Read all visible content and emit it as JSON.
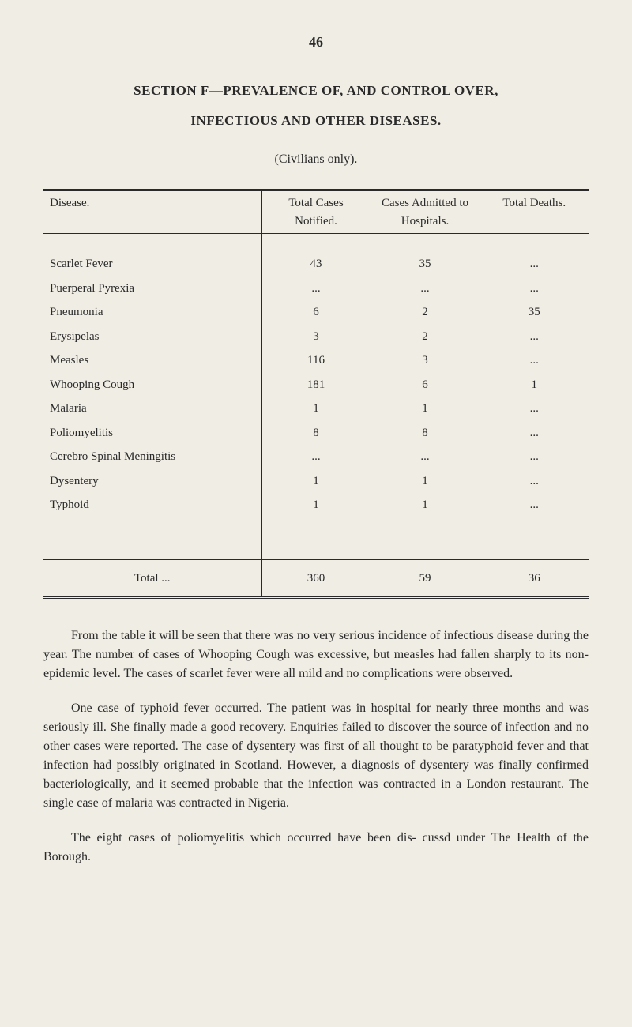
{
  "page_number": "46",
  "section_title": "SECTION F—PREVALENCE OF, AND CONTROL OVER,",
  "subtitle": "INFECTIOUS AND OTHER DISEASES.",
  "note": "(Civilians only).",
  "table": {
    "headers": {
      "disease": "Disease.",
      "notified": "Total Cases Notified.",
      "admitted": "Cases Admitted to Hospitals.",
      "deaths": "Total Deaths."
    },
    "rows": [
      {
        "disease": "Scarlet Fever",
        "notified": "43",
        "admitted": "35",
        "deaths": "..."
      },
      {
        "disease": "Puerperal Pyrexia",
        "notified": "...",
        "admitted": "...",
        "deaths": "..."
      },
      {
        "disease": "Pneumonia",
        "notified": "6",
        "admitted": "2",
        "deaths": "35"
      },
      {
        "disease": "Erysipelas",
        "notified": "3",
        "admitted": "2",
        "deaths": "..."
      },
      {
        "disease": "Measles",
        "notified": "116",
        "admitted": "3",
        "deaths": "..."
      },
      {
        "disease": "Whooping Cough",
        "notified": "181",
        "admitted": "6",
        "deaths": "1"
      },
      {
        "disease": "Malaria",
        "notified": "1",
        "admitted": "1",
        "deaths": "..."
      },
      {
        "disease": "Poliomyelitis",
        "notified": "8",
        "admitted": "8",
        "deaths": "..."
      },
      {
        "disease": "Cerebro Spinal Meningitis",
        "notified": "...",
        "admitted": "...",
        "deaths": "..."
      },
      {
        "disease": "Dysentery",
        "notified": "1",
        "admitted": "1",
        "deaths": "..."
      },
      {
        "disease": "Typhoid",
        "notified": "1",
        "admitted": "1",
        "deaths": "..."
      }
    ],
    "total": {
      "label": "Total   ...",
      "notified": "360",
      "admitted": "59",
      "deaths": "36"
    }
  },
  "paragraphs": {
    "p1": "From the table it will be seen that there was no very serious incidence of infectious disease during the year. The number of cases of Whooping Cough was excessive, but measles had fallen sharply to its non-epidemic level. The cases of scarlet fever were all mild and no complications were observed.",
    "p2": "One case of typhoid fever occurred. The patient was in hospital for nearly three months and was seriously ill. She finally made a good recovery. Enquiries failed to discover the source of infection and no other cases were reported. The case of dysentery was first of all thought to be paratyphoid fever and that infection had possibly originated in Scotland. However, a diagnosis of dysentery was finally confirmed bacteriologically, and it seemed probable that the infection was contracted in a London restaurant. The single case of malaria was contracted in Nigeria.",
    "p3": "The eight cases of poliomyelitis which occurred have been dis- cussd under The Health of the Borough."
  }
}
